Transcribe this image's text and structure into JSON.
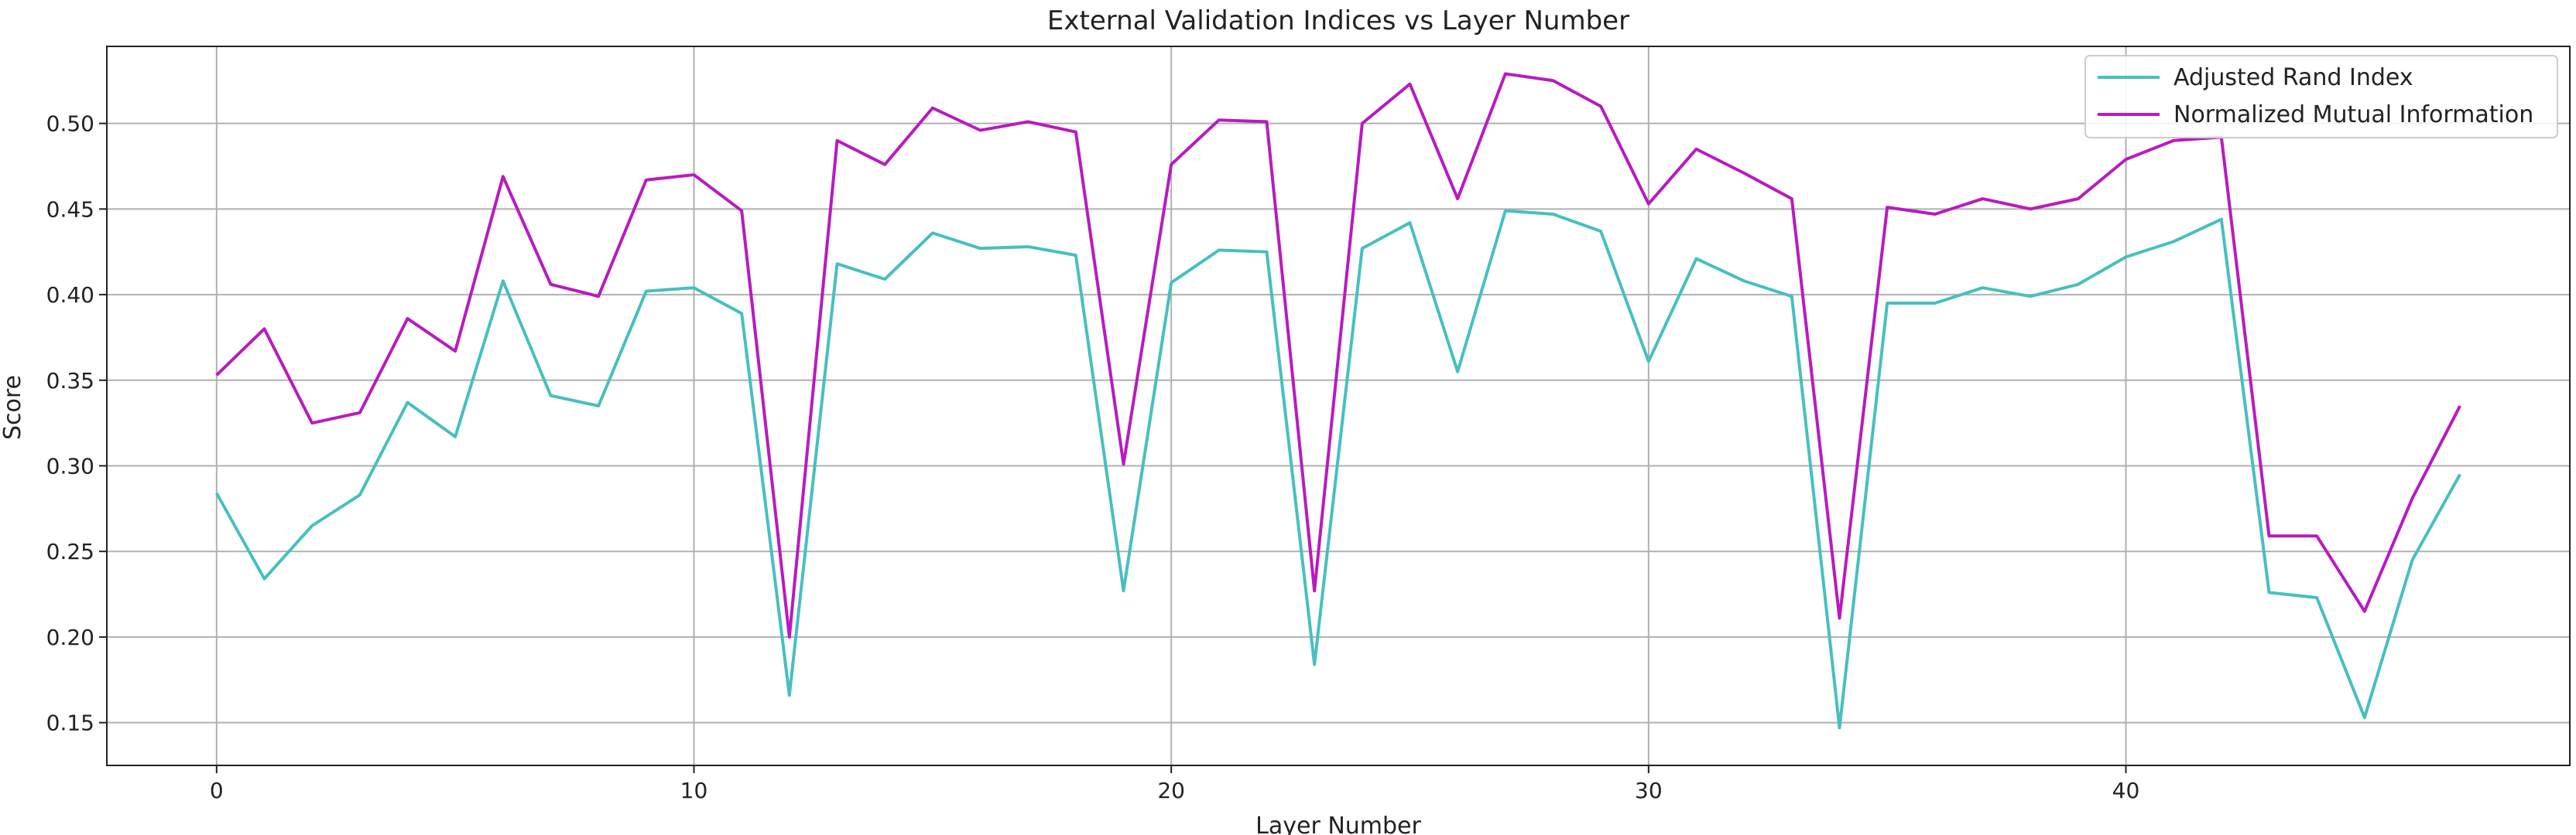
{
  "chart_data": {
    "type": "line",
    "title": "External Validation Indices vs Layer Number",
    "xlabel": "Layer Number",
    "ylabel": "Score",
    "xlim": [
      -2.3,
      49.3
    ],
    "ylim": [
      0.125,
      0.545
    ],
    "xticks": [
      0,
      10,
      20,
      30,
      40
    ],
    "yticks": [
      0.15,
      0.2,
      0.25,
      0.3,
      0.35,
      0.4,
      0.45,
      0.5
    ],
    "grid": true,
    "legend_position": "top-right",
    "x": [
      0,
      1,
      2,
      3,
      4,
      5,
      6,
      7,
      8,
      9,
      10,
      11,
      12,
      13,
      14,
      15,
      16,
      17,
      18,
      19,
      20,
      21,
      22,
      23,
      24,
      25,
      26,
      27,
      28,
      29,
      30,
      31,
      32,
      33,
      34,
      35,
      36,
      37,
      38,
      39,
      40,
      41,
      42,
      43,
      44,
      45,
      46,
      47
    ],
    "series": [
      {
        "name": "Adjusted Rand Index",
        "color": "#47bfbf",
        "values": [
          0.284,
          0.234,
          0.265,
          0.283,
          0.337,
          0.317,
          0.408,
          0.341,
          0.335,
          0.402,
          0.404,
          0.389,
          0.166,
          0.418,
          0.409,
          0.436,
          0.427,
          0.428,
          0.423,
          0.227,
          0.407,
          0.426,
          0.425,
          0.184,
          0.427,
          0.442,
          0.355,
          0.449,
          0.447,
          0.437,
          0.361,
          0.421,
          0.408,
          0.399,
          0.147,
          0.395,
          0.395,
          0.404,
          0.399,
          0.406,
          0.422,
          0.431,
          0.444,
          0.226,
          0.223,
          0.153,
          0.245,
          0.295
        ]
      },
      {
        "name": "Normalized Mutual Information",
        "color": "#b81bbf",
        "values": [
          0.353,
          0.38,
          0.325,
          0.331,
          0.386,
          0.367,
          0.469,
          0.406,
          0.399,
          0.467,
          0.47,
          0.449,
          0.2,
          0.49,
          0.476,
          0.509,
          0.496,
          0.501,
          0.495,
          0.301,
          0.476,
          0.502,
          0.501,
          0.227,
          0.5,
          0.523,
          0.456,
          0.529,
          0.525,
          0.51,
          0.453,
          0.485,
          0.471,
          0.456,
          0.211,
          0.451,
          0.447,
          0.456,
          0.45,
          0.456,
          0.479,
          0.49,
          0.492,
          0.259,
          0.259,
          0.215,
          0.281,
          0.335
        ]
      }
    ]
  }
}
